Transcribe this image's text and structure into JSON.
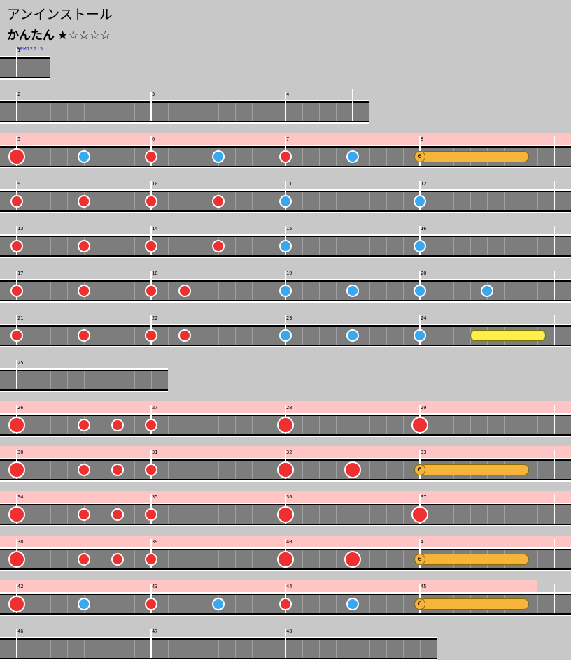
{
  "title": "アンインストール",
  "difficulty": {
    "label": "かんたん",
    "stars": "★☆☆☆☆",
    "level": 1,
    "max_level": 5
  },
  "bpm_label": "BPM122.5",
  "roll_label": "6",
  "rows": [
    {
      "measures": [
        1
      ],
      "pink": false,
      "notes": []
    },
    {
      "measures": [
        2,
        3,
        4
      ],
      "pink": false,
      "notes": []
    },
    {
      "measures": [
        5,
        6,
        7,
        8
      ],
      "pink": true,
      "notes": [
        {
          "m": 5,
          "b": 0,
          "t": "DON"
        },
        {
          "m": 5,
          "b": 2,
          "t": "ka"
        },
        {
          "m": 6,
          "b": 0,
          "t": "don"
        },
        {
          "m": 6,
          "b": 2,
          "t": "ka"
        },
        {
          "m": 7,
          "b": 0,
          "t": "don"
        },
        {
          "m": 7,
          "b": 2,
          "t": "ka"
        },
        {
          "m": 8,
          "b": 0,
          "t": "roll",
          "len": 3.25
        }
      ]
    },
    {
      "measures": [
        9,
        10,
        11,
        12
      ],
      "pink": false,
      "notes": [
        {
          "m": 9,
          "b": 0,
          "t": "don"
        },
        {
          "m": 9,
          "b": 2,
          "t": "don"
        },
        {
          "m": 10,
          "b": 0,
          "t": "don"
        },
        {
          "m": 10,
          "b": 2,
          "t": "don"
        },
        {
          "m": 11,
          "b": 0,
          "t": "ka"
        },
        {
          "m": 12,
          "b": 0,
          "t": "ka"
        }
      ]
    },
    {
      "measures": [
        13,
        14,
        15,
        16
      ],
      "pink": false,
      "notes": [
        {
          "m": 13,
          "b": 0,
          "t": "don"
        },
        {
          "m": 13,
          "b": 2,
          "t": "don"
        },
        {
          "m": 14,
          "b": 0,
          "t": "don"
        },
        {
          "m": 14,
          "b": 2,
          "t": "don"
        },
        {
          "m": 15,
          "b": 0,
          "t": "ka"
        },
        {
          "m": 16,
          "b": 0,
          "t": "ka"
        }
      ]
    },
    {
      "measures": [
        17,
        18,
        19,
        20
      ],
      "pink": false,
      "notes": [
        {
          "m": 17,
          "b": 0,
          "t": "don"
        },
        {
          "m": 17,
          "b": 2,
          "t": "don"
        },
        {
          "m": 18,
          "b": 0,
          "t": "don"
        },
        {
          "m": 18,
          "b": 1,
          "t": "don"
        },
        {
          "m": 19,
          "b": 0,
          "t": "ka"
        },
        {
          "m": 19,
          "b": 2,
          "t": "ka"
        },
        {
          "m": 20,
          "b": 0,
          "t": "ka"
        },
        {
          "m": 20,
          "b": 2,
          "t": "ka"
        }
      ]
    },
    {
      "measures": [
        21,
        22,
        23,
        24
      ],
      "pink": false,
      "notes": [
        {
          "m": 21,
          "b": 0,
          "t": "don"
        },
        {
          "m": 21,
          "b": 2,
          "t": "don"
        },
        {
          "m": 22,
          "b": 0,
          "t": "don"
        },
        {
          "m": 22,
          "b": 1,
          "t": "don"
        },
        {
          "m": 23,
          "b": 0,
          "t": "ka"
        },
        {
          "m": 23,
          "b": 2,
          "t": "ka"
        },
        {
          "m": 24,
          "b": 0,
          "t": "ka"
        },
        {
          "m": 24,
          "b": 1.5,
          "t": "yroll",
          "len": 2.25
        }
      ]
    },
    {
      "measures": [
        25
      ],
      "pink": false,
      "notes": []
    },
    {
      "measures": [
        26,
        27,
        28,
        29
      ],
      "pink": true,
      "notes": [
        {
          "m": 26,
          "b": 0,
          "t": "DON"
        },
        {
          "m": 26,
          "b": 2,
          "t": "don"
        },
        {
          "m": 26,
          "b": 3,
          "t": "don"
        },
        {
          "m": 27,
          "b": 0,
          "t": "don"
        },
        {
          "m": 28,
          "b": 0,
          "t": "DON"
        },
        {
          "m": 29,
          "b": 0,
          "t": "DON"
        }
      ]
    },
    {
      "measures": [
        30,
        31,
        32,
        33
      ],
      "pink": true,
      "notes": [
        {
          "m": 30,
          "b": 0,
          "t": "DON"
        },
        {
          "m": 30,
          "b": 2,
          "t": "don"
        },
        {
          "m": 30,
          "b": 3,
          "t": "don"
        },
        {
          "m": 31,
          "b": 0,
          "t": "don"
        },
        {
          "m": 32,
          "b": 0,
          "t": "DON"
        },
        {
          "m": 32,
          "b": 2,
          "t": "DON"
        },
        {
          "m": 33,
          "b": 0,
          "t": "roll",
          "len": 3.25
        }
      ]
    },
    {
      "measures": [
        34,
        35,
        36,
        37
      ],
      "pink": true,
      "notes": [
        {
          "m": 34,
          "b": 0,
          "t": "DON"
        },
        {
          "m": 34,
          "b": 2,
          "t": "don"
        },
        {
          "m": 34,
          "b": 3,
          "t": "don"
        },
        {
          "m": 35,
          "b": 0,
          "t": "don"
        },
        {
          "m": 36,
          "b": 0,
          "t": "DON"
        },
        {
          "m": 37,
          "b": 0,
          "t": "DON"
        }
      ]
    },
    {
      "measures": [
        38,
        39,
        40,
        41
      ],
      "pink": true,
      "notes": [
        {
          "m": 38,
          "b": 0,
          "t": "DON"
        },
        {
          "m": 38,
          "b": 2,
          "t": "don"
        },
        {
          "m": 38,
          "b": 3,
          "t": "don"
        },
        {
          "m": 39,
          "b": 0,
          "t": "don"
        },
        {
          "m": 40,
          "b": 0,
          "t": "DON"
        },
        {
          "m": 40,
          "b": 2,
          "t": "DON"
        },
        {
          "m": 41,
          "b": 0,
          "t": "roll",
          "len": 3.25
        }
      ]
    },
    {
      "measures": [
        42,
        43,
        44,
        45
      ],
      "pink": true,
      "notes": [
        {
          "m": 42,
          "b": 0,
          "t": "DON"
        },
        {
          "m": 42,
          "b": 2,
          "t": "ka"
        },
        {
          "m": 43,
          "b": 0,
          "t": "don"
        },
        {
          "m": 43,
          "b": 2,
          "t": "ka"
        },
        {
          "m": 44,
          "b": 0,
          "t": "don"
        },
        {
          "m": 44,
          "b": 2,
          "t": "ka"
        },
        {
          "m": 45,
          "b": 0,
          "t": "roll",
          "len": 3.25
        }
      ]
    },
    {
      "measures": [
        46,
        47,
        48
      ],
      "pink": false,
      "notes": []
    }
  ]
}
